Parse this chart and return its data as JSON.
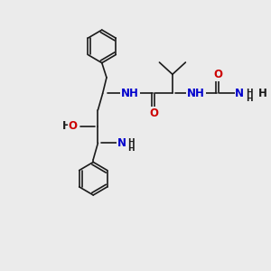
{
  "bg_color": "#ebebeb",
  "bond_color": "#1a1a1a",
  "N_color": "#0000cd",
  "O_color": "#cc0000",
  "H_color": "#1a1a1a",
  "font_size_atom": 8.5,
  "font_size_sub": 6.5,
  "line_width": 1.2,
  "figsize": [
    3.0,
    3.0
  ],
  "dpi": 100,
  "xlim": [
    0,
    10
  ],
  "ylim": [
    0,
    10
  ]
}
